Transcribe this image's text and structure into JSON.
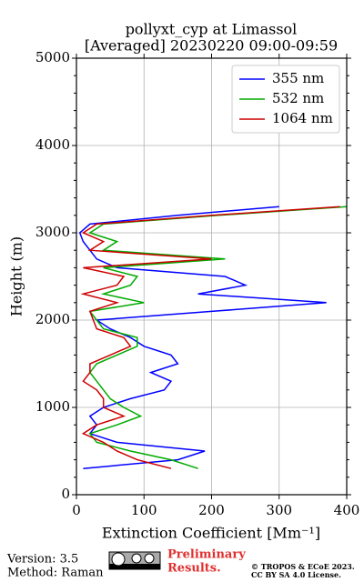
{
  "chart_data": {
    "type": "line",
    "title": [
      "pollyxt_cyp at Limassol",
      "[Averaged] 20230220 09:00-09:59"
    ],
    "xlabel": "Extinction Coefficient [Mm⁻¹]",
    "ylabel": "Height (m)",
    "y": [
      300,
      400,
      500,
      600,
      700,
      800,
      900,
      1000,
      1100,
      1200,
      1300,
      1400,
      1500,
      1600,
      1700,
      1800,
      1900,
      2000,
      2100,
      2200,
      2300,
      2400,
      2500,
      2600,
      2700,
      2800,
      2900,
      3000,
      3100,
      3200,
      3300
    ],
    "series": [
      {
        "name": "355 nm",
        "color": "#0000ff",
        "values": [
          10,
          150,
          190,
          60,
          20,
          30,
          20,
          40,
          80,
          130,
          140,
          110,
          150,
          140,
          100,
          80,
          50,
          30,
          200,
          370,
          180,
          250,
          220,
          60,
          30,
          20,
          10,
          5,
          20,
          150,
          300
        ]
      },
      {
        "name": "532 nm",
        "color": "#00aa00",
        "values": [
          180,
          140,
          80,
          30,
          20,
          60,
          95,
          70,
          50,
          40,
          30,
          20,
          30,
          60,
          90,
          90,
          40,
          30,
          20,
          100,
          40,
          80,
          90,
          40,
          220,
          40,
          60,
          20,
          40,
          210,
          400
        ]
      },
      {
        "name": "1064 nm",
        "color": "#cc0000",
        "values": [
          140,
          90,
          60,
          40,
          10,
          30,
          70,
          40,
          40,
          30,
          10,
          20,
          20,
          50,
          80,
          70,
          30,
          25,
          20,
          60,
          10,
          60,
          70,
          10,
          200,
          20,
          40,
          10,
          30,
          200,
          390
        ]
      }
    ],
    "xlim": [
      0,
      400
    ],
    "xticks": [
      0,
      100,
      200,
      300,
      400
    ],
    "ylim": [
      0,
      5000
    ],
    "yticks": [
      0,
      1000,
      2000,
      3000,
      4000,
      5000
    ],
    "grid": true,
    "legend": "upper right"
  },
  "footer": {
    "version": "Version: 3.5",
    "method": "Method: Raman",
    "preliminary": [
      "Preliminary",
      "Results."
    ],
    "copyright": [
      "© TROPOS & ECoE 2023.",
      "CC BY SA 4.0 License."
    ]
  }
}
